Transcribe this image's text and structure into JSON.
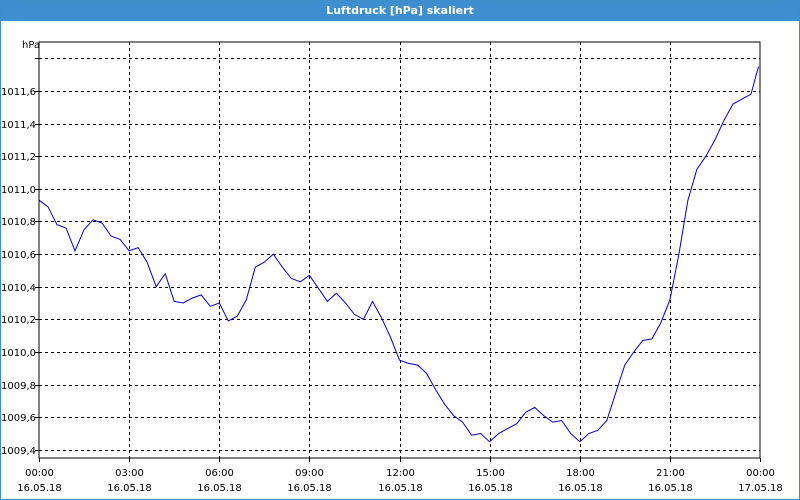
{
  "window": {
    "title": "Luftdruck [hPa] skaliert"
  },
  "chart_data": {
    "type": "line",
    "title": "Luftdruck [hPa] skaliert",
    "ylabel": "hPa",
    "xlabel": "",
    "ylim": [
      1009.35,
      1011.9
    ],
    "xlim": [
      0,
      24
    ],
    "grid": true,
    "legend": "none",
    "line_color": "#0000cc",
    "grid_color": "#000000",
    "yticks": [
      1009.4,
      1009.6,
      1009.8,
      1010.0,
      1010.2,
      1010.4,
      1010.6,
      1010.8,
      1011.0,
      1011.2,
      1011.4,
      1011.6,
      1011.8
    ],
    "ytick_labels": [
      "1009,4",
      "1009,6",
      "1009,8",
      "1010,0",
      "1010,2",
      "1010,4",
      "1010,6",
      "1010,8",
      "1011,0",
      "1011,2",
      "1011,4",
      "1011,6",
      ""
    ],
    "xticks": [
      {
        "x": 0,
        "time": "00:00",
        "date": "16.05.18"
      },
      {
        "x": 3,
        "time": "03:00",
        "date": "16.05.18"
      },
      {
        "x": 6,
        "time": "06:00",
        "date": "16.05.18"
      },
      {
        "x": 9,
        "time": "09:00",
        "date": "16.05.18"
      },
      {
        "x": 12,
        "time": "12:00",
        "date": "16.05.18"
      },
      {
        "x": 15,
        "time": "15:00",
        "date": "16.05.18"
      },
      {
        "x": 18,
        "time": "18:00",
        "date": "16.05.18"
      },
      {
        "x": 21,
        "time": "21:00",
        "date": "16.05.18"
      },
      {
        "x": 24,
        "time": "00:00",
        "date": "17.05.18"
      }
    ],
    "series": [
      {
        "x": [
          0,
          0.3,
          0.6,
          0.9,
          1.2,
          1.5,
          1.8,
          2.1,
          2.4,
          2.7,
          3.0,
          3.3,
          3.6,
          3.9,
          4.2,
          4.5,
          4.8,
          5.1,
          5.4,
          5.7,
          6.0,
          6.3,
          6.6,
          6.9,
          7.2,
          7.5,
          7.8,
          8.1,
          8.4,
          8.7,
          9.0,
          9.3,
          9.6,
          9.9,
          10.2,
          10.5,
          10.8,
          11.1,
          11.4,
          11.7,
          12.0,
          12.3,
          12.6,
          12.9,
          13.2,
          13.5,
          13.8,
          14.1,
          14.4,
          14.7,
          15.0,
          15.3,
          15.6,
          15.9,
          16.2,
          16.5,
          16.8,
          17.1,
          17.4,
          17.7,
          18.0,
          18.3,
          18.6,
          18.9,
          19.2,
          19.5,
          19.8,
          20.1,
          20.4,
          20.7,
          21.0,
          21.3,
          21.6,
          21.9,
          22.2,
          22.5,
          22.8,
          23.1,
          23.4,
          23.7,
          23.95
        ],
        "values": [
          1010.93,
          1010.89,
          1010.78,
          1010.76,
          1010.62,
          1010.75,
          1010.81,
          1010.79,
          1010.71,
          1010.69,
          1010.62,
          1010.64,
          1010.55,
          1010.4,
          1010.48,
          1010.31,
          1010.3,
          1010.33,
          1010.35,
          1010.28,
          1010.3,
          1010.19,
          1010.22,
          1010.32,
          1010.52,
          1010.55,
          1010.6,
          1010.52,
          1010.45,
          1010.43,
          1010.47,
          1010.39,
          1010.31,
          1010.36,
          1010.3,
          1010.23,
          1010.2,
          1010.31,
          1010.21,
          1010.09,
          1009.95,
          1009.93,
          1009.92,
          1009.87,
          1009.77,
          1009.68,
          1009.61,
          1009.57,
          1009.49,
          1009.5,
          1009.45,
          1009.5,
          1009.53,
          1009.56,
          1009.63,
          1009.66,
          1009.61,
          1009.57,
          1009.58,
          1009.5,
          1009.45,
          1009.5,
          1009.52,
          1009.58,
          1009.75,
          1009.92,
          1010.0,
          1010.07,
          1010.08,
          1010.18,
          1010.32,
          1010.6,
          1010.93,
          1011.12,
          1011.2,
          1011.3,
          1011.42,
          1011.52,
          1011.55,
          1011.58,
          1011.75
        ]
      }
    ]
  }
}
